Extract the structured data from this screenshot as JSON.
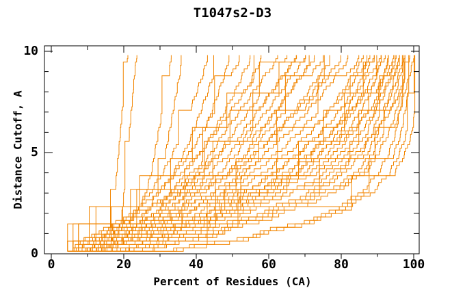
{
  "chart_data": {
    "type": "line",
    "title": "T1047s2-D3",
    "xlabel": "Percent of Residues (CA)",
    "ylabel": "Distance Cutoff, A",
    "xlim": [
      0,
      100
    ],
    "ylim": [
      0,
      10
    ],
    "grid": false,
    "legend": "none",
    "background": "#FFFFFF",
    "line_color": "#F28500",
    "axis_color": "#000000",
    "x_major_ticks": [
      0,
      20,
      40,
      60,
      80,
      100
    ],
    "x_minor_ticks": [
      10,
      30,
      50,
      70,
      90
    ],
    "x_tick_labels": [
      "0",
      "20",
      "40",
      "60",
      "80",
      "100"
    ],
    "y_major_ticks": [
      0,
      5,
      10
    ],
    "y_minor_ticks": [
      1,
      2,
      3,
      4,
      6,
      7,
      8,
      9
    ],
    "y_tick_labels": [
      "0",
      "5",
      "10"
    ],
    "series_description": "Each curve is one predicted model: percent of CA residues (x) superimposable under a distance cutoff (y). Curves are given as x-percent values sampled at the shared cutoff_levels; each family is replicated at the listed x-offsets.",
    "cutoff_levels": [
      0.3,
      1,
      2,
      3,
      4,
      5,
      6,
      7,
      8,
      9,
      9.7
    ],
    "curve_families": [
      {
        "name": "worst-models",
        "x": [
          14,
          16,
          17,
          17.5,
          18,
          18.5,
          19,
          19.5,
          20,
          20.5,
          21
        ],
        "offsets": [
          0,
          2.5
        ]
      },
      {
        "name": "poor-models",
        "x": [
          14,
          20,
          25,
          28,
          29.5,
          30.5,
          31.5,
          32.5,
          33.5,
          34.5,
          35
        ],
        "offsets": [
          -2,
          1
        ]
      },
      {
        "name": "low-models",
        "x": [
          11,
          17,
          24,
          29,
          32.5,
          35.5,
          38,
          40,
          42,
          44,
          45
        ],
        "offsets": [
          -2,
          1,
          4
        ]
      },
      {
        "name": "mid-low-models",
        "x": [
          10,
          16,
          25,
          32,
          37,
          41,
          44.5,
          47.5,
          50.5,
          53,
          55
        ],
        "offsets": [
          -3,
          0,
          3
        ]
      },
      {
        "name": "mid-models-a",
        "x": [
          9,
          17,
          27,
          35,
          41,
          46,
          50,
          54,
          58,
          62,
          65
        ],
        "offsets": [
          -5,
          -2.5,
          0,
          2.5,
          5,
          7.5
        ]
      },
      {
        "name": "mid-models-b",
        "x": [
          10,
          19,
          31,
          41,
          48,
          54,
          59,
          64,
          68,
          72,
          75
        ],
        "offsets": [
          -7.5,
          -5,
          -2.5,
          0,
          2.5,
          5
        ]
      },
      {
        "name": "good-models-a",
        "x": [
          12,
          22,
          36,
          47,
          55,
          62,
          68,
          73,
          78,
          82,
          85
        ],
        "offsets": [
          -6,
          -3,
          0,
          3,
          6,
          9
        ]
      },
      {
        "name": "good-models-b",
        "x": [
          15,
          27,
          43,
          55,
          64,
          71,
          77,
          82,
          86,
          89.5,
          92
        ],
        "offsets": [
          -6,
          -3,
          0,
          3,
          5
        ]
      },
      {
        "name": "dense-bundle",
        "x": [
          20,
          33,
          50,
          63,
          73,
          80,
          85,
          89,
          92,
          94,
          95
        ],
        "offsets": [
          -8,
          -6,
          -4,
          -2,
          0,
          2,
          4
        ]
      },
      {
        "name": "best-bundle",
        "x": [
          28,
          44,
          62,
          76,
          85,
          90,
          93,
          95,
          96.5,
          98,
          99
        ],
        "offsets": [
          -6,
          -4.5,
          -3,
          -1.5,
          0,
          1
        ]
      },
      {
        "name": "top-models",
        "x": [
          38,
          57,
          77,
          88,
          93,
          96,
          98,
          99,
          100,
          100,
          100
        ],
        "offsets": [
          -3,
          -1.5,
          0,
          1.5
        ]
      }
    ]
  }
}
